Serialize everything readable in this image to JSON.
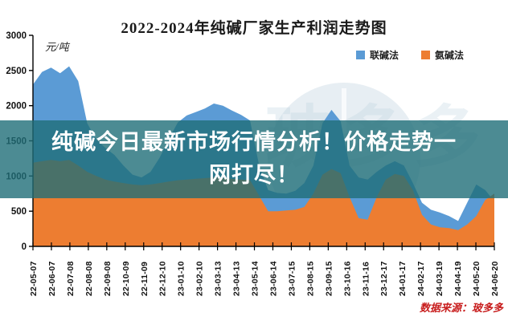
{
  "title": "2022-2024年纯碱厂家生产利润走势图",
  "overlay_banner": {
    "line1": "纯碱今日最新市场行情分析！价格走势一",
    "line2": "网打尽！"
  },
  "source_note": "数据来源：玻多多",
  "watermark_text": "玻多多",
  "colors": {
    "series_blue": "#5B9BD5",
    "series_orange": "#ED7D31",
    "banner_teal": "#1F6E78",
    "axis": "#000000",
    "source_red": "#C81E1E",
    "watermark": "#B9CFDE"
  },
  "chart_data": {
    "type": "area",
    "title": "2022-2024年纯碱厂家生产利润走势图",
    "unit_label": "元/吨",
    "xlabel": "",
    "ylabel": "元/吨",
    "ylim": [
      0,
      3000
    ],
    "yticks": [
      0,
      500,
      1000,
      1500,
      2000,
      2500,
      3000
    ],
    "grid": false,
    "legend_position": "top-right",
    "x_tick_labels": [
      "22-05-07",
      "22-06-07",
      "22-07-08",
      "22-08-08",
      "22-09-08",
      "22-10-09",
      "22-11-09",
      "22-12-10",
      "23-01-10",
      "23-02-10",
      "23-03-13",
      "23-04-13",
      "23-05-14",
      "23-06-14",
      "23-07-15",
      "23-08-15",
      "23-09-15",
      "23-10-16",
      "23-11-16",
      "23-12-17",
      "24-01-17",
      "24-02-17",
      "24-03-19",
      "24-04-19",
      "24-05-20",
      "24-06-20"
    ],
    "series": [
      {
        "name": "联碱法",
        "color": "#5B9BD5",
        "values": [
          2300,
          2480,
          2540,
          2460,
          2560,
          2350,
          1750,
          1520,
          1400,
          1300,
          1150,
          1020,
          980,
          1060,
          1260,
          1520,
          1760,
          1860,
          1910,
          1960,
          2030,
          2000,
          1930,
          1870,
          1790,
          1150,
          800,
          760,
          750,
          790,
          900,
          1150,
          1750,
          1940,
          1780,
          1150,
          980,
          950,
          1060,
          1150,
          1210,
          1150,
          900,
          620,
          520,
          480,
          430,
          360,
          620,
          880,
          800,
          640
        ]
      },
      {
        "name": "氨碱法",
        "color": "#ED7D31",
        "values": [
          1190,
          1210,
          1230,
          1210,
          1230,
          1150,
          1060,
          1000,
          950,
          920,
          900,
          880,
          870,
          880,
          900,
          920,
          940,
          950,
          960,
          970,
          980,
          970,
          960,
          950,
          940,
          720,
          500,
          500,
          510,
          520,
          560,
          750,
          1020,
          1100,
          1040,
          700,
          400,
          380,
          700,
          950,
          1030,
          1000,
          800,
          450,
          310,
          270,
          260,
          230,
          310,
          430,
          660,
          750
        ]
      }
    ]
  }
}
